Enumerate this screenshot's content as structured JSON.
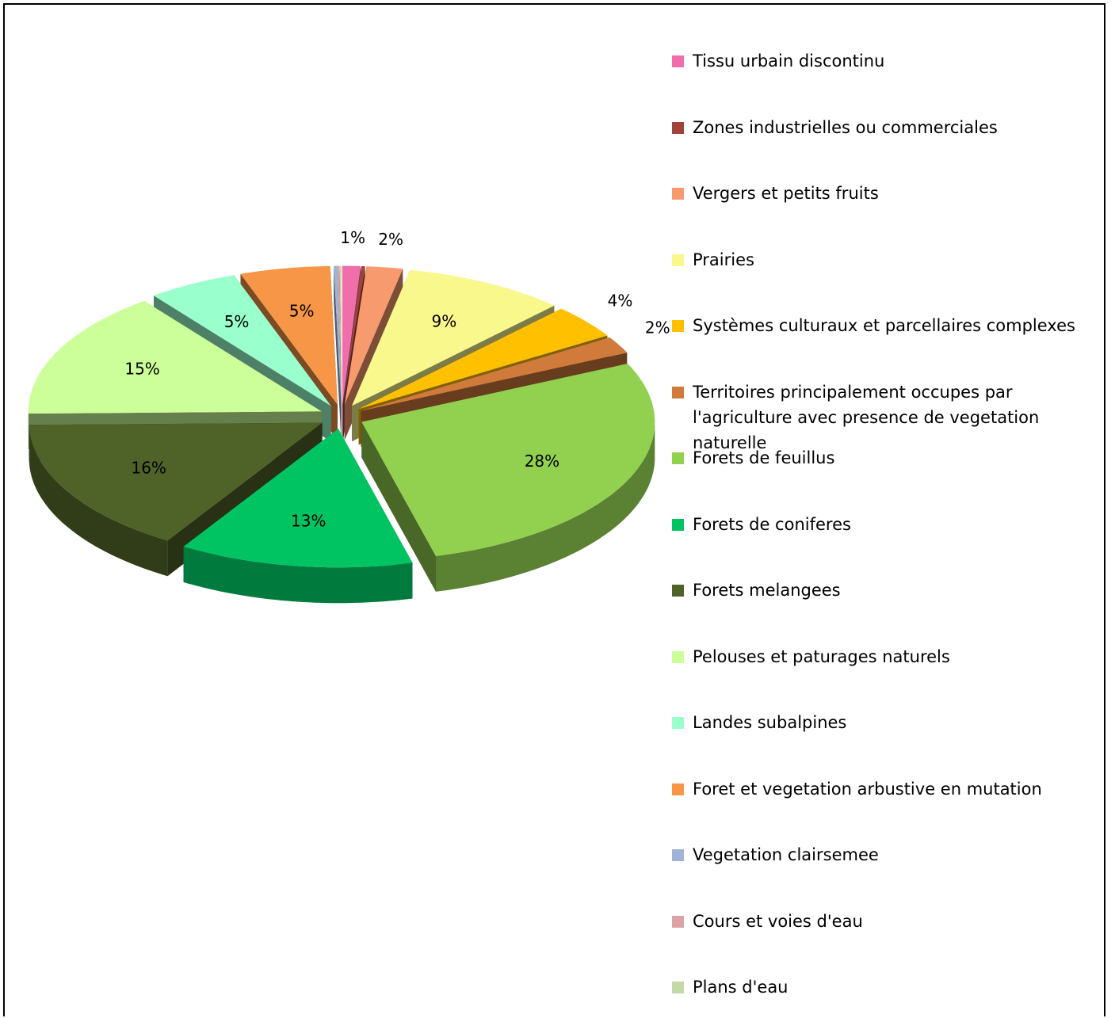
{
  "chart_data": {
    "type": "pie",
    "categories": [
      "Tissu urbain discontinu",
      "Zones industrielles ou commerciales",
      "Vergers et petits fruits",
      "Prairies",
      "Systèmes culturaux et parcellaires complexes",
      "Territoires principalement occupes par l'agriculture avec presence de vegetation naturelle",
      "Forets de feuillus",
      "Forets de coniferes",
      "Forets melangees",
      "Pelouses et paturages naturels",
      "Landes subalpines",
      "Foret et vegetation arbustive en mutation",
      "Vegetation clairsemee",
      "Cours et voies d'eau",
      "Plans d'eau"
    ],
    "values": [
      1,
      0.2,
      2,
      9,
      4,
      2,
      28,
      13,
      16,
      15,
      5,
      5,
      0.2,
      0.1,
      0.1
    ],
    "value_labels": [
      "1%",
      null,
      "2%",
      "9%",
      "4%",
      "2%",
      "28%",
      "13%",
      "16%",
      "15%",
      "5%",
      "5%",
      null,
      null,
      null
    ],
    "colors": [
      "#f06ea9",
      "#a0433b",
      "#f79a6e",
      "#f8f88c",
      "#ffc000",
      "#d07a3c",
      "#92d050",
      "#00c462",
      "#4f6228",
      "#ccff99",
      "#99ffcc",
      "#f79646",
      "#9fb4d6",
      "#dba3a3",
      "#c4d8a8"
    ],
    "legend": "right"
  }
}
